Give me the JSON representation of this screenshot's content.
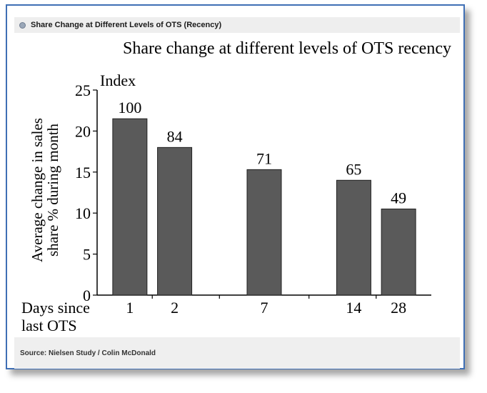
{
  "header": {
    "title": "Share Change at Different Levels of OTS (Recency)"
  },
  "footer": {
    "source": "Source: Nielsen Study / Colin McDonald"
  },
  "chart_data": {
    "type": "bar",
    "title": "Share change at different levels of OTS recency",
    "ylabel_line1": "Average change in sales",
    "ylabel_line2": "share % during month",
    "index_label": "Index",
    "xlabel_line1": "Days since",
    "xlabel_line2": "last OTS",
    "ylim": [
      0,
      25
    ],
    "yticks": [
      0,
      5,
      10,
      15,
      20,
      25
    ],
    "categories": [
      "1",
      "2",
      "7",
      "14",
      "28"
    ],
    "values": [
      21.5,
      18,
      15.3,
      14,
      10.5
    ],
    "data_labels": [
      "100",
      "84",
      "71",
      "65",
      "49"
    ],
    "bar_color": "#5a5a5a",
    "grid": false
  }
}
